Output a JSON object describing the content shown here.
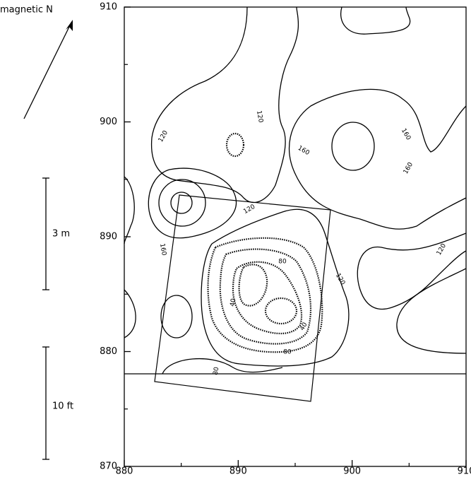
{
  "chart_data": {
    "type": "contour",
    "annotations": [
      "magnetic N",
      "3 m",
      "10 ft"
    ],
    "xlim": [
      880,
      910
    ],
    "ylim": [
      870,
      910
    ],
    "xticks": [
      880,
      890,
      900,
      910
    ],
    "yticks": [
      870,
      880,
      890,
      900,
      910
    ],
    "xminor_ticks": [
      885,
      895,
      905
    ],
    "yminor_ticks": [
      875,
      885,
      895,
      905
    ],
    "contour_labels": [
      120,
      120,
      160,
      160,
      160,
      120,
      160,
      80,
      120,
      120,
      40,
      40,
      80,
      80
    ],
    "color": "#000000"
  }
}
